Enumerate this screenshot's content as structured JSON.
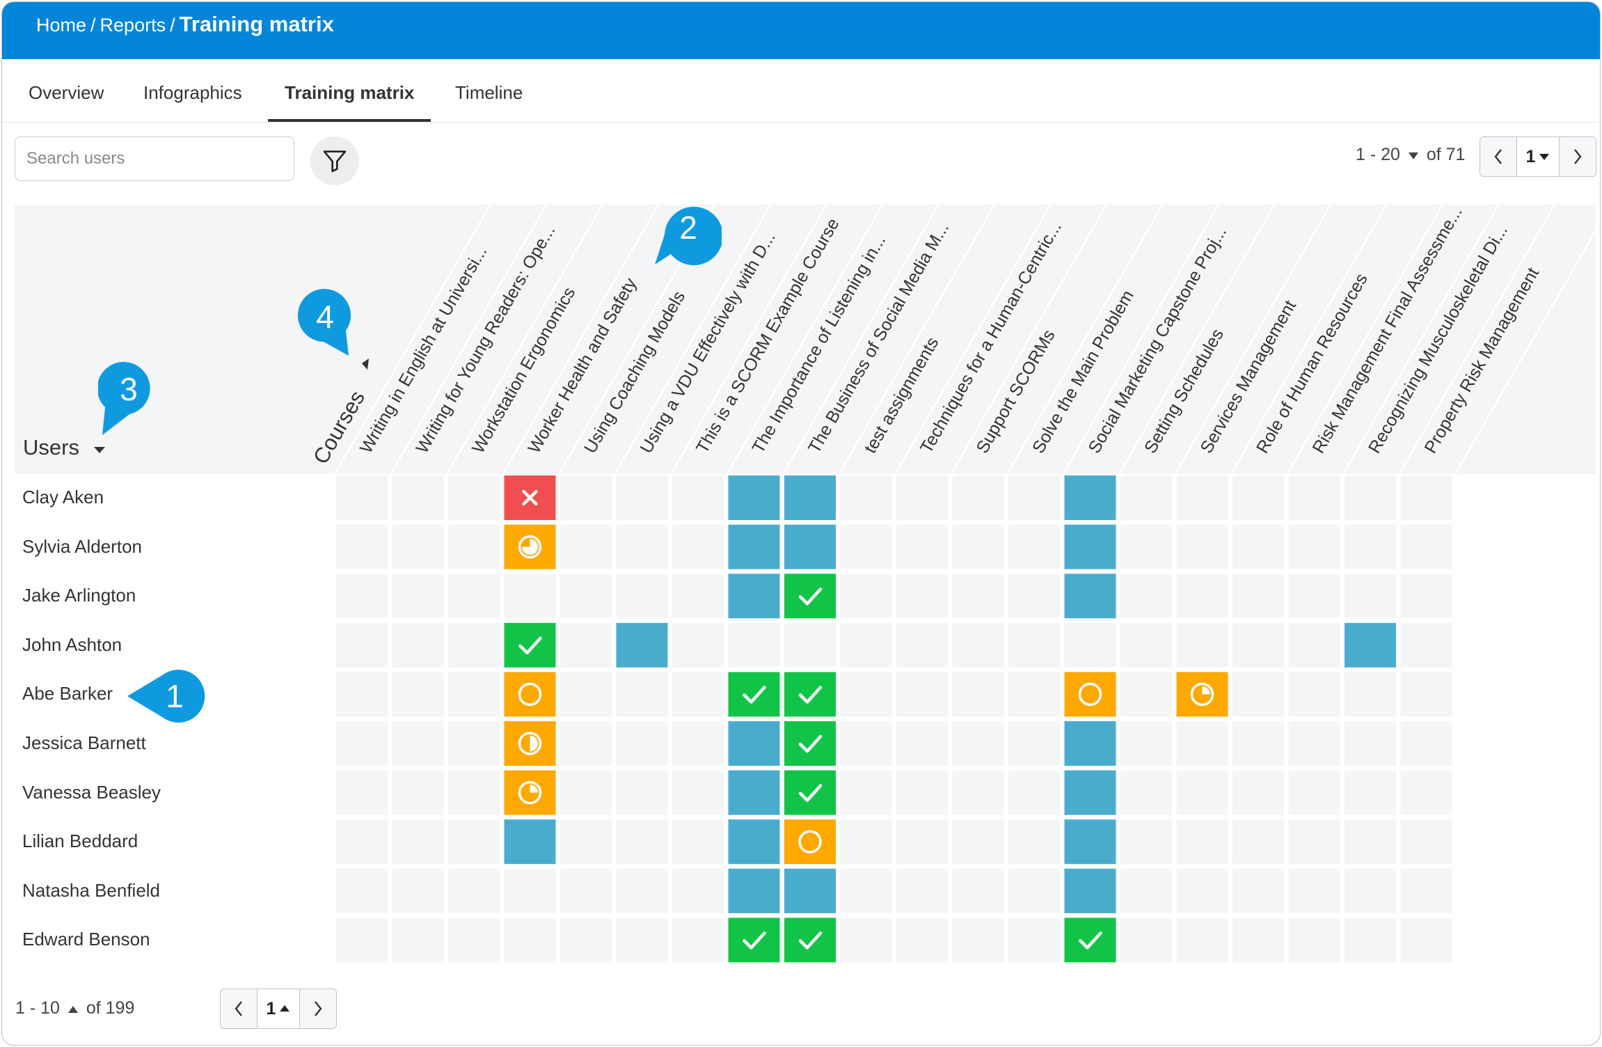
{
  "breadcrumb": {
    "home": "Home",
    "sep": "/",
    "reports": "Reports",
    "current": "Training matrix"
  },
  "tabs": [
    "Overview",
    "Infographics",
    "Training matrix",
    "Timeline"
  ],
  "search": {
    "placeholder": "Search users",
    "value": ""
  },
  "pager_top": {
    "range": "1 - 20",
    "of": "of 71",
    "page": "1"
  },
  "pager_bottom": {
    "range": "1 - 10",
    "of": "of 199",
    "page": "1"
  },
  "headers": {
    "users": "Users",
    "courses": "Courses"
  },
  "courses": [
    "Writing in English at Universi...",
    "Writing for Young Readers: Ope...",
    "Workstation Ergonomics",
    "Worker Health and Safety",
    "Using Coaching Models",
    "Using a VDU Effectively with D...",
    "This is a SCORM Example Course",
    "The Importance of Listening in...",
    "The Business of Social Media M...",
    "test assignments",
    "Techniques for a Human-Centric...",
    "Support SCORMs",
    "Solve the Main Problem",
    "Social Marketing Capstone Proj...",
    "Setting Schedules",
    "Services Management",
    "Role of Human Resources",
    "Risk Management Final Assessme...",
    "Recognizing Musculoskeletal Di...",
    "Property Risk Management"
  ],
  "users": [
    "Clay Aken",
    "Sylvia Alderton",
    "Jake Arlington",
    "John Ashton",
    "Abe Barker",
    "Jessica Barnett",
    "Vanessa Beasley",
    "Lilian Beddard",
    "Natasha Benfield",
    "Edward Benson"
  ],
  "legend_note": "status codes: e=empty/not assigned, a=assigned (blue), c=completed, f=failed, p0=not started, p25/p50/p75=progress",
  "matrix": [
    [
      "e",
      "e",
      "e",
      "f",
      "e",
      "e",
      "e",
      "a",
      "a",
      "e",
      "e",
      "e",
      "e",
      "a",
      "e",
      "e",
      "e",
      "e",
      "e",
      "e"
    ],
    [
      "e",
      "e",
      "e",
      "p75",
      "e",
      "e",
      "e",
      "a",
      "a",
      "e",
      "e",
      "e",
      "e",
      "a",
      "e",
      "e",
      "e",
      "e",
      "e",
      "e"
    ],
    [
      "e",
      "e",
      "e",
      "e",
      "e",
      "e",
      "e",
      "a",
      "c",
      "e",
      "e",
      "e",
      "e",
      "a",
      "e",
      "e",
      "e",
      "e",
      "e",
      "e"
    ],
    [
      "e",
      "e",
      "e",
      "c",
      "e",
      "a",
      "e",
      "e",
      "e",
      "e",
      "e",
      "e",
      "e",
      "e",
      "e",
      "e",
      "e",
      "e",
      "a",
      "e"
    ],
    [
      "e",
      "e",
      "e",
      "p0",
      "e",
      "e",
      "e",
      "c",
      "c",
      "e",
      "e",
      "e",
      "e",
      "p0",
      "e",
      "p25",
      "e",
      "e",
      "e",
      "e"
    ],
    [
      "e",
      "e",
      "e",
      "p50",
      "e",
      "e",
      "e",
      "a",
      "c",
      "e",
      "e",
      "e",
      "e",
      "a",
      "e",
      "e",
      "e",
      "e",
      "e",
      "e"
    ],
    [
      "e",
      "e",
      "e",
      "p25",
      "e",
      "e",
      "e",
      "a",
      "c",
      "e",
      "e",
      "e",
      "e",
      "a",
      "e",
      "e",
      "e",
      "e",
      "e",
      "e"
    ],
    [
      "e",
      "e",
      "e",
      "a",
      "e",
      "e",
      "e",
      "a",
      "p0",
      "e",
      "e",
      "e",
      "e",
      "a",
      "e",
      "e",
      "e",
      "e",
      "e",
      "e"
    ],
    [
      "e",
      "e",
      "e",
      "e",
      "e",
      "e",
      "e",
      "a",
      "a",
      "e",
      "e",
      "e",
      "e",
      "a",
      "e",
      "e",
      "e",
      "e",
      "e",
      "e"
    ],
    [
      "e",
      "e",
      "e",
      "e",
      "e",
      "e",
      "e",
      "c",
      "c",
      "e",
      "e",
      "e",
      "e",
      "c",
      "e",
      "e",
      "e",
      "e",
      "e",
      "e"
    ]
  ],
  "colors": {
    "topbar": "#0285d9",
    "assigned": "#4aaccd",
    "completed": "#11c447",
    "failed": "#ef4f4f",
    "in_progress": "#fea800",
    "empty": "#f4f5f6",
    "callout": "#0f9ae0"
  },
  "callouts": [
    "1",
    "2",
    "3",
    "4"
  ]
}
